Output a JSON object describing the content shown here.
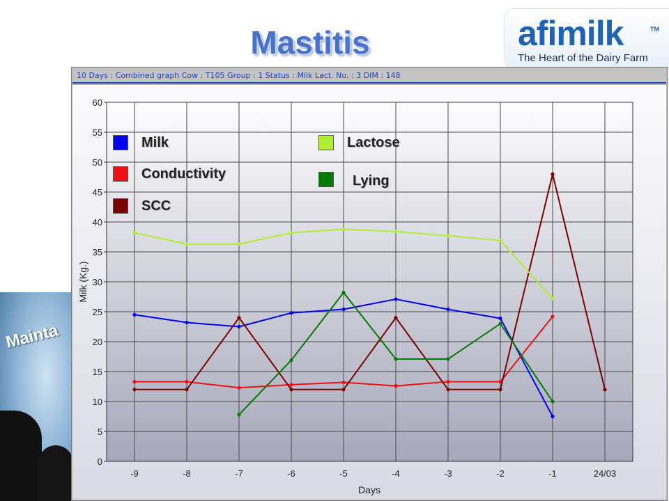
{
  "slide": {
    "title": "Mastitis",
    "background_text": "Mainta"
  },
  "logo": {
    "brand": "afimilk",
    "tm": "TM",
    "tagline": "The Heart of the Dairy Farm"
  },
  "window": {
    "header": "10 Days : Combined graph    Cow : T105    Group : 1    Status : Milk    Lact. No. : 3    DIM : 148"
  },
  "colors": {
    "milk": "#0000ee",
    "conductivity": "#ee1111",
    "scc": "#7a0000",
    "lactose": "#b0ee33",
    "lying": "#007a00",
    "title": "#4a72c8",
    "header_text": "#1a47b8"
  },
  "chart_data": {
    "type": "line",
    "xlabel": "Days",
    "ylabel": "Milk (Kg.)",
    "ylim": [
      0,
      60
    ],
    "yticks": [
      "0",
      "5",
      "10",
      "15",
      "20",
      "25",
      "30",
      "35",
      "40",
      "45",
      "50",
      "55",
      "60"
    ],
    "categories": [
      "-9",
      "-8",
      "-7",
      "-6",
      "-5",
      "-4",
      "-3",
      "-2",
      "-1",
      "24/03"
    ],
    "grid": true,
    "legend_position": "top-left",
    "series": [
      {
        "name": "Milk",
        "color": "#0000ee",
        "values": [
          24.5,
          23.2,
          22.5,
          24.8,
          25.4,
          27.1,
          25.4,
          23.9,
          7.5,
          null
        ]
      },
      {
        "name": "Conductivity",
        "color": "#ee1111",
        "values": [
          13.3,
          13.3,
          12.3,
          12.8,
          13.2,
          12.6,
          13.3,
          13.3,
          24.2,
          null
        ]
      },
      {
        "name": "SCC",
        "color": "#7a0000",
        "values": [
          12.0,
          12.0,
          24.0,
          12.0,
          12.0,
          24.0,
          12.0,
          12.0,
          48.0,
          12.0
        ]
      },
      {
        "name": "Lactose",
        "color": "#b0ee33",
        "values": [
          38.2,
          36.3,
          36.3,
          38.2,
          38.8,
          38.4,
          37.7,
          36.9,
          27.2,
          null
        ]
      },
      {
        "name": "Lying",
        "color": "#007a00",
        "values": [
          null,
          null,
          7.8,
          16.9,
          28.2,
          17.1,
          17.1,
          23.0,
          10.0,
          null
        ]
      }
    ]
  }
}
